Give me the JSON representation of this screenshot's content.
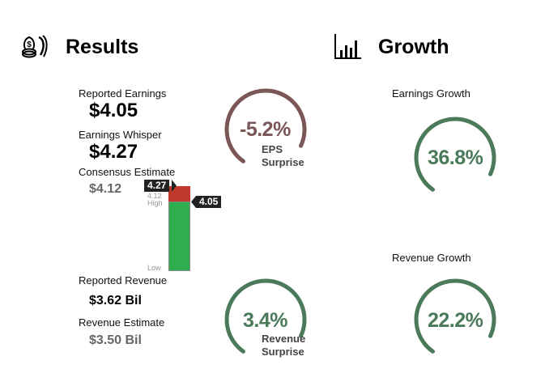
{
  "results": {
    "title": "Results",
    "icon": "money-bag-icon",
    "reported_earnings": {
      "label": "Reported Earnings",
      "value": "$4.05"
    },
    "earnings_whisper": {
      "label": "Earnings Whisper",
      "value": "$4.27"
    },
    "consensus_estimate": {
      "label": "Consensus Estimate",
      "value": "$4.12"
    },
    "eps_surprise": {
      "value": "-5.2%",
      "label_line1": "EPS",
      "label_line2": "Surprise",
      "color": "#7a5656"
    },
    "reported_revenue": {
      "label": "Reported Revenue",
      "value": "$3.62 Bil"
    },
    "revenue_estimate": {
      "label": "Revenue Estimate",
      "value": "$3.50 Bil"
    },
    "revenue_surprise": {
      "value": "3.4%",
      "label_line1": "Revenue",
      "label_line2": "Surprise",
      "color": "#4a7a5a"
    },
    "bar": {
      "whisper_tag": "4.27",
      "consensus_tag": "4.12",
      "reported_tag": "4.05",
      "high_label": "High",
      "low_label": "Low",
      "red_color": "#c0392b",
      "green_color": "#2eae4e"
    }
  },
  "growth": {
    "title": "Growth",
    "icon": "bar-chart-icon",
    "earnings_growth": {
      "label": "Earnings Growth",
      "value": "36.8%",
      "color": "#4a7a5a"
    },
    "revenue_growth": {
      "label": "Revenue Growth",
      "value": "22.2%",
      "color": "#4a7a5a"
    }
  }
}
